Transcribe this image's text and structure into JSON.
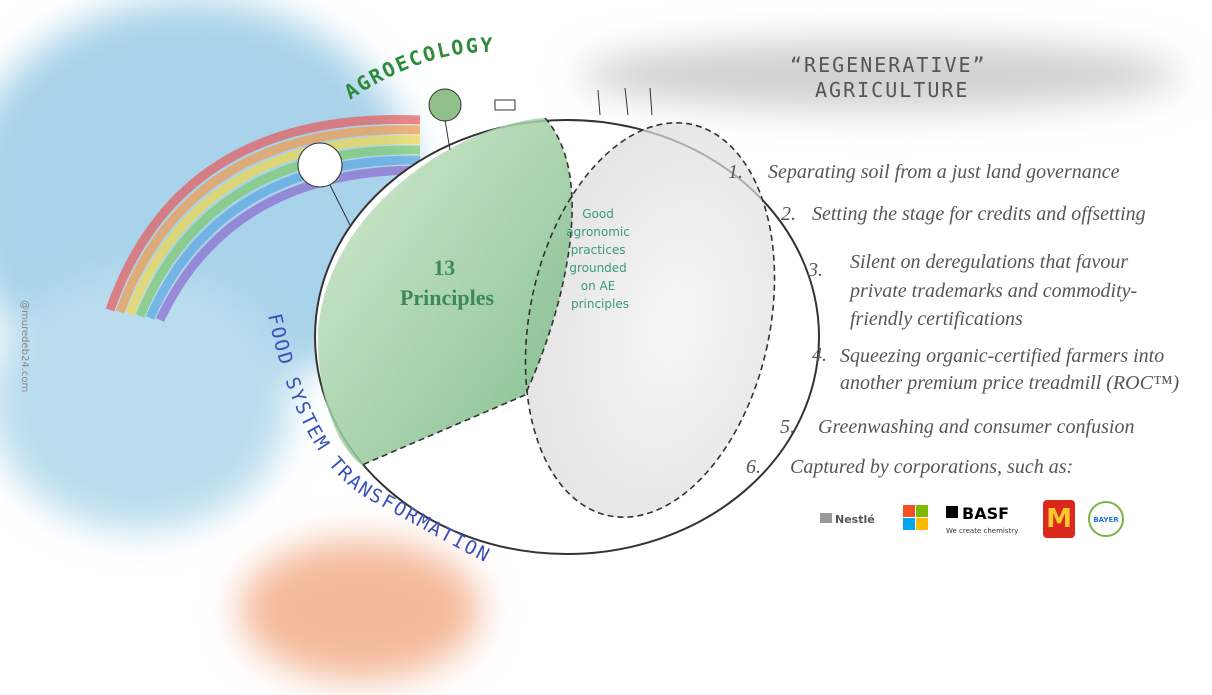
{
  "labels": {
    "agroecology": "AGROECOLOGY",
    "regenerative": [
      "“REGENERATIVE”",
      "AGRICULTURE"
    ],
    "principles": [
      "13",
      "Principles"
    ],
    "overlap": [
      "Good",
      "agronomic",
      "practices",
      "grounded",
      "on AE",
      "principles"
    ],
    "food_system": "FOOD SYSTEM TRANSFORMATION",
    "credit": "@muredeb24.com"
  },
  "critiques": [
    {
      "number": "1.",
      "lines": [
        "Separating soil from a just land governance"
      ]
    },
    {
      "number": "2.",
      "lines": [
        "Setting the stage for credits and offsetting"
      ]
    },
    {
      "number": "3.",
      "lines": [
        "Silent on deregulations that favour",
        "private trademarks and commodity-",
        "friendly certifications"
      ]
    },
    {
      "number": "4.",
      "lines": [
        "Squeezing organic-certified farmers into",
        "another premium price treadmill (ROC™)"
      ]
    },
    {
      "number": "5.",
      "lines": [
        "Greenwashing and consumer confusion"
      ]
    },
    {
      "number": "6.",
      "lines": [
        "Captured by corporations, such as:"
      ]
    }
  ],
  "logos": {
    "nestle": "Nestlé",
    "basf": "BASF",
    "basf_tagline": "We create chemistry",
    "mcdonalds": "M",
    "bayer": "BAYER"
  }
}
